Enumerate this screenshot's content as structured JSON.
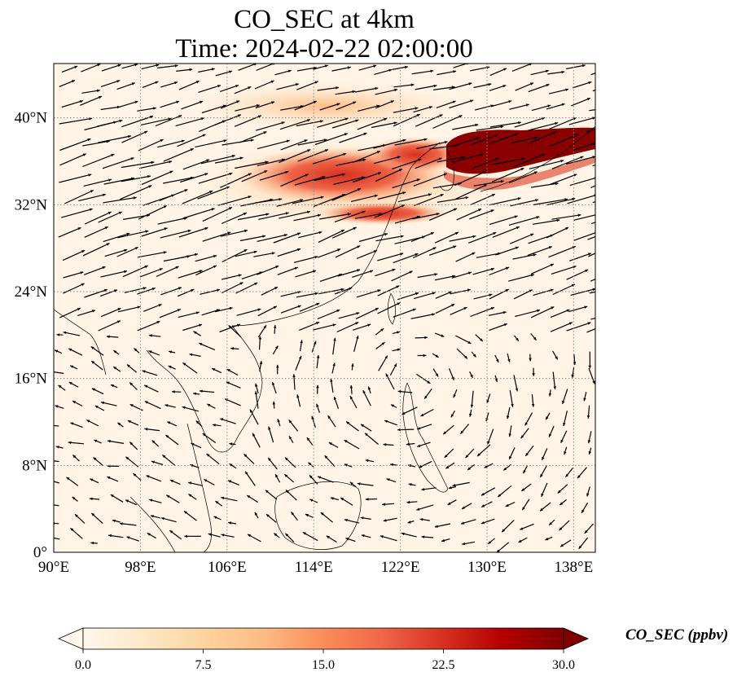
{
  "title": {
    "line1": "CO_SEC at 4km",
    "line2": "Time: 2024-02-22 02:00:00"
  },
  "map": {
    "extent": {
      "lon_min": 90,
      "lon_max": 140,
      "lat_min": 0,
      "lat_max": 45
    },
    "lon_ticks": [
      "90°E",
      "98°E",
      "106°E",
      "114°E",
      "122°E",
      "130°E",
      "138°E"
    ],
    "lon_values": [
      90,
      98,
      106,
      114,
      122,
      130,
      138
    ],
    "lat_ticks": [
      "0°",
      "8°N",
      "16°N",
      "24°N",
      "32°N",
      "40°N"
    ],
    "lat_values": [
      0,
      8,
      16,
      24,
      32,
      40
    ],
    "gridlines": "dotted",
    "field": "CO_SEC",
    "overlay": "wind vectors",
    "plume_regions": [
      {
        "lon": [
          108,
          127
        ],
        "lat": [
          32,
          37
        ],
        "level": "high"
      },
      {
        "lon": [
          127,
          140
        ],
        "lat": [
          35,
          38.5
        ],
        "level": "max"
      }
    ]
  },
  "colorbar": {
    "label": "CO_SEC (ppbv)",
    "min": 0,
    "max": 30,
    "tick_labels": [
      "0.0",
      "7.5",
      "15.0",
      "22.5",
      "30.0"
    ],
    "tick_values": [
      0,
      7.5,
      15,
      22.5,
      30
    ],
    "extend": "both",
    "colormap": [
      "#fff7ec",
      "#fee8c8",
      "#fdd49e",
      "#fdbb84",
      "#fc8d59",
      "#ef6548",
      "#d7301f",
      "#b30000",
      "#7f0000"
    ]
  }
}
